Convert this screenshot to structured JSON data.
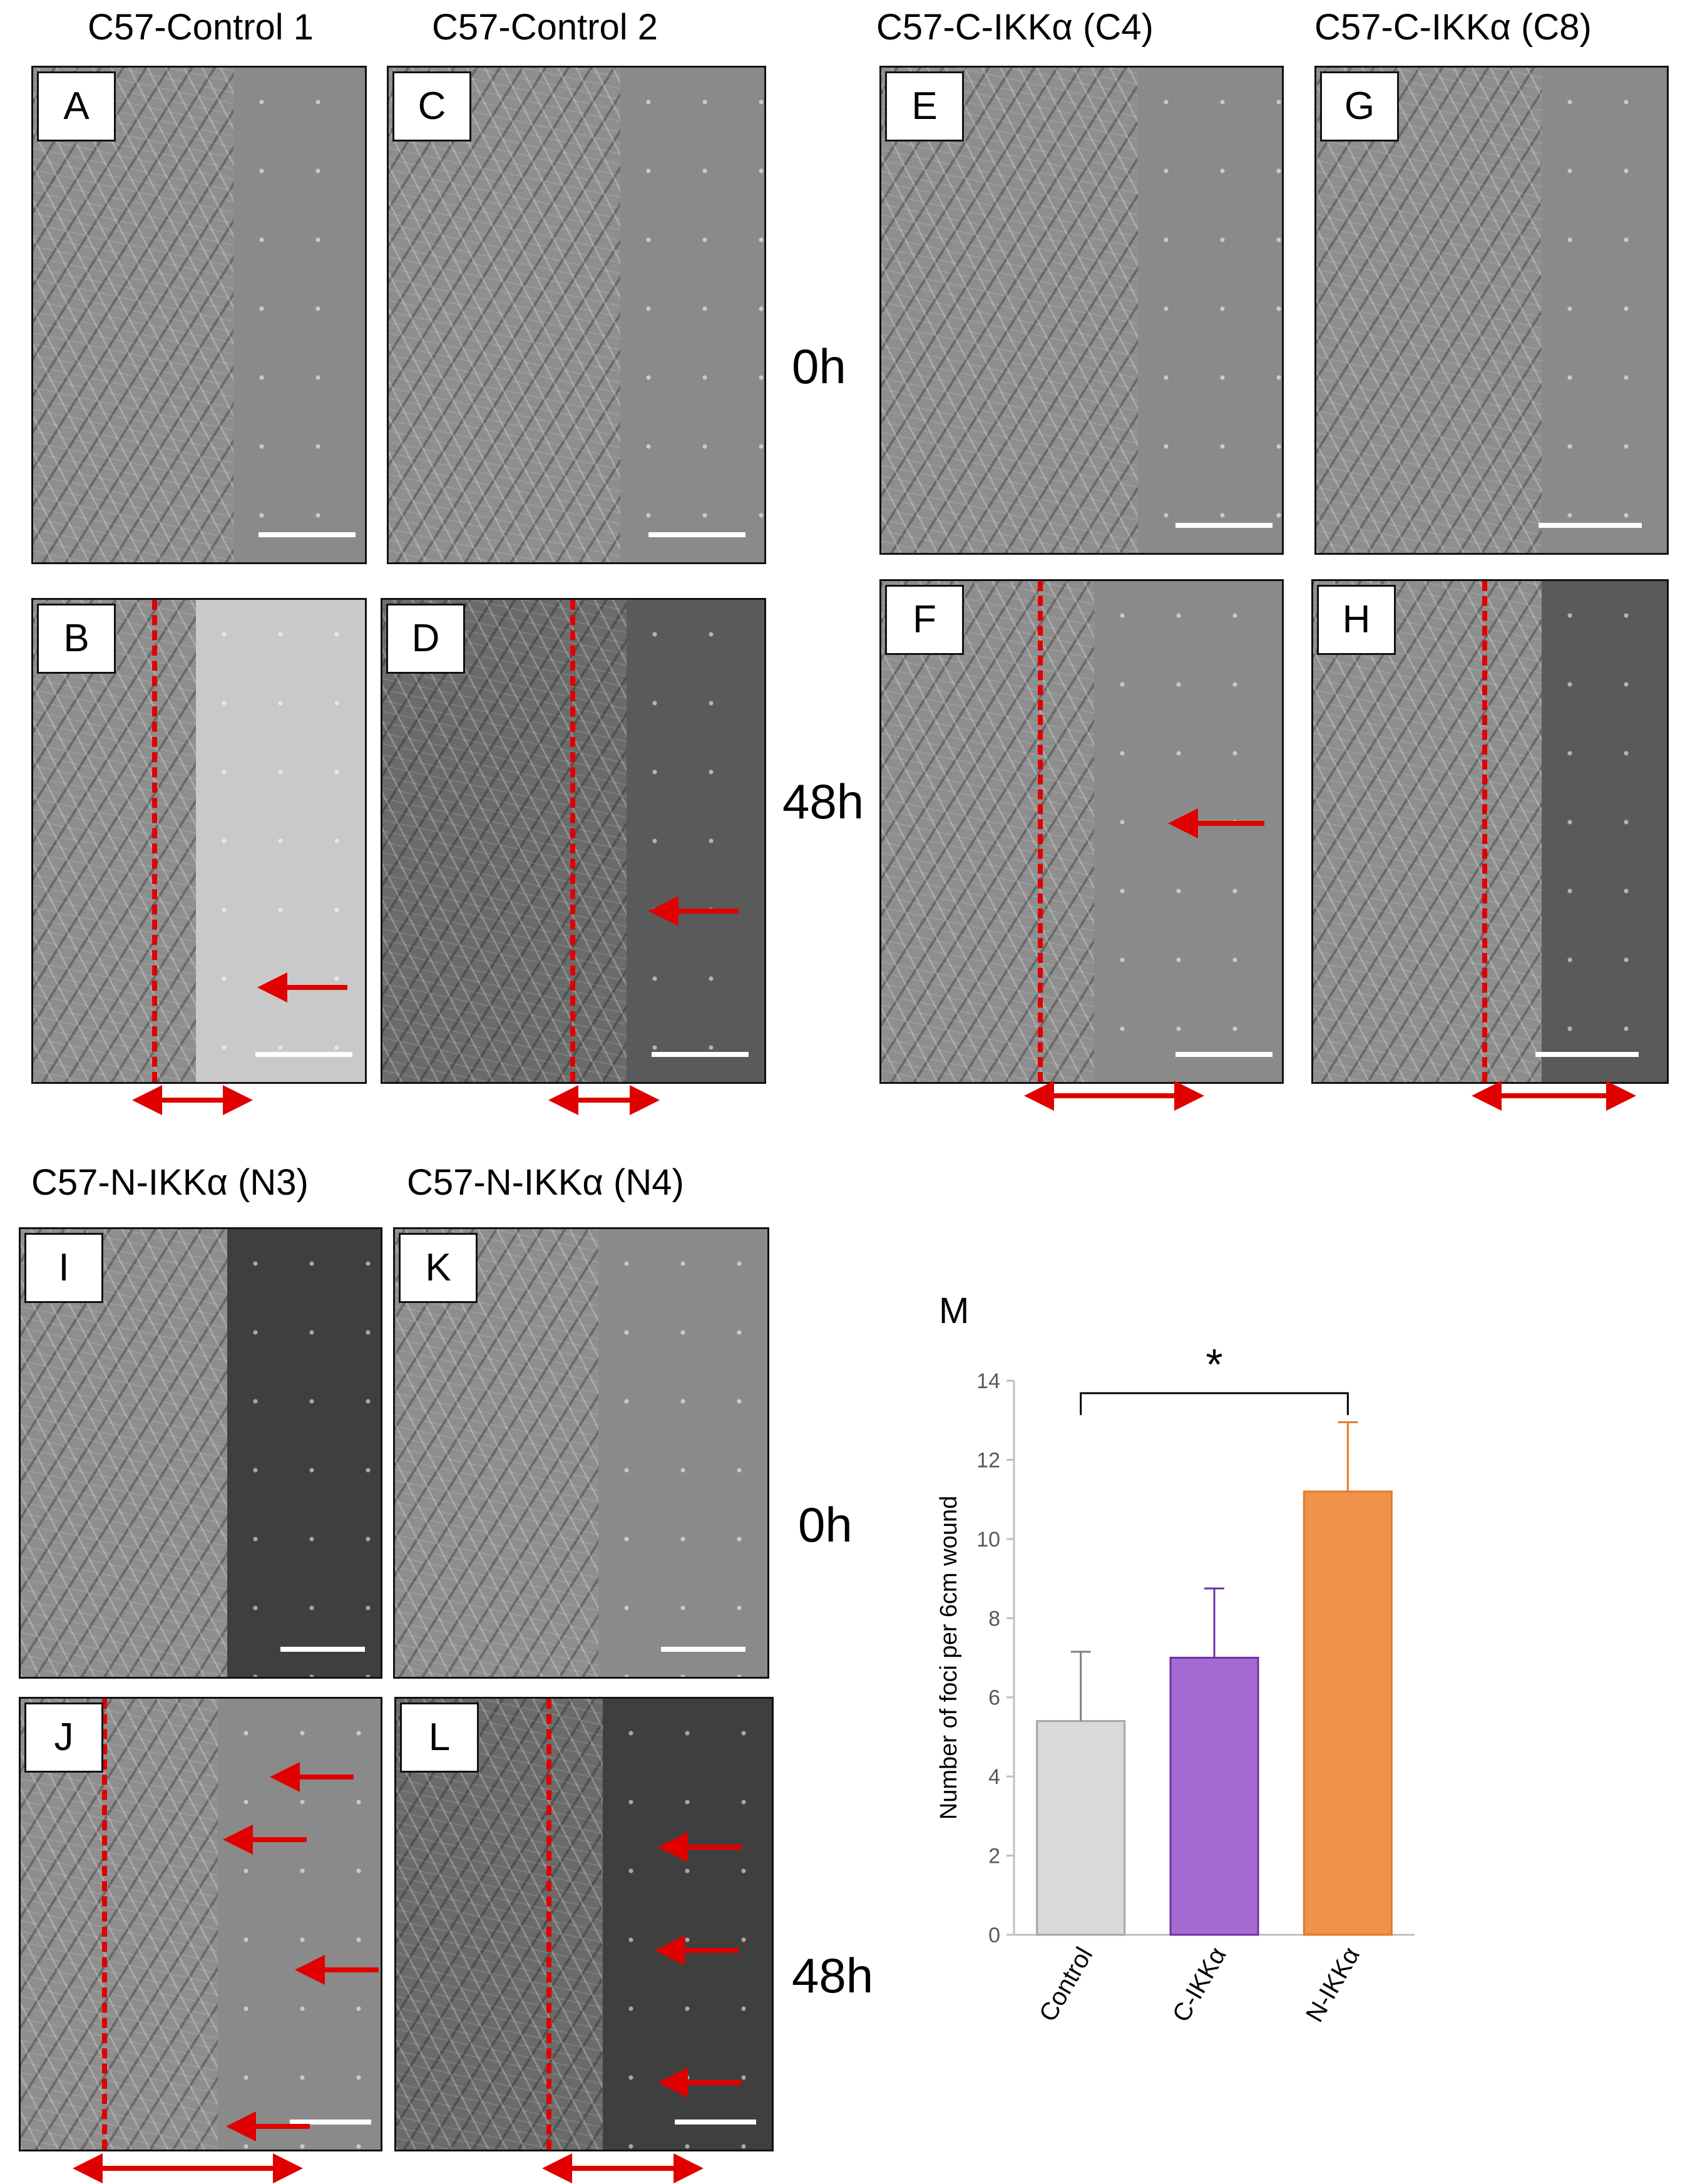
{
  "figure": {
    "column_titles": [
      "C57-Control 1",
      "C57-Control 2",
      "C57-C-IKKα (C4)",
      "C57-C-IKKα (C8)",
      "C57-N-IKKα (N3)",
      "C57-N-IKKα (N4)"
    ],
    "time_labels": {
      "t0": "0h",
      "t48": "48h"
    },
    "panel_letters": [
      "A",
      "B",
      "C",
      "D",
      "E",
      "F",
      "G",
      "H",
      "I",
      "J",
      "K",
      "L"
    ],
    "chart_panel_letter": "M"
  },
  "chart_data": {
    "type": "bar",
    "categories": [
      "Control",
      "C-IKKα",
      "N-IKKα"
    ],
    "values": [
      5.4,
      7.0,
      11.2
    ],
    "errors": [
      1.75,
      1.75,
      1.75
    ],
    "colors": [
      "#d9d9d9",
      "#a66bd3",
      "#f0924a"
    ],
    "edge_colors": [
      "#a6a6a6",
      "#7030a0",
      "#e07b28"
    ],
    "title": "",
    "xlabel": "",
    "ylabel": "Number of foci per 6cm wound",
    "ylim": [
      0,
      14
    ],
    "yticks": [
      0,
      2,
      4,
      6,
      8,
      10,
      12,
      14
    ],
    "significance": {
      "label": "*",
      "from": "Control",
      "to": "N-IKKα"
    },
    "grid": false
  }
}
